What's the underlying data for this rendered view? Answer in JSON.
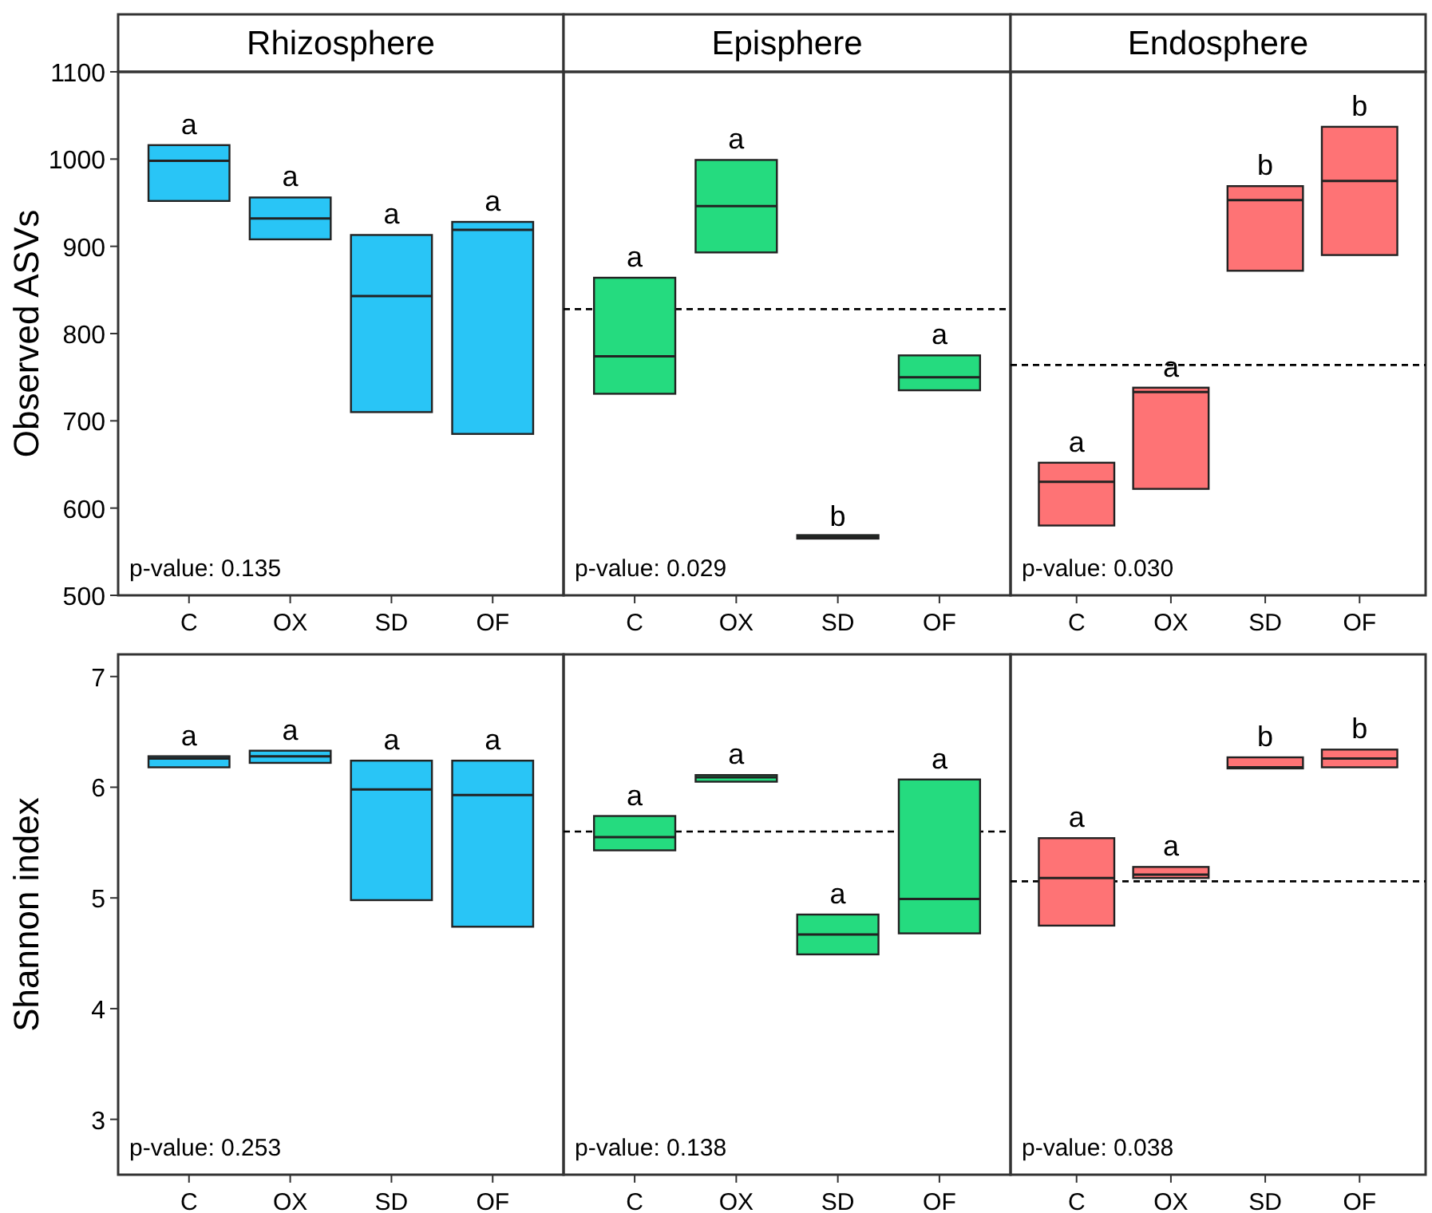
{
  "chart_data": [
    {
      "type": "box",
      "title": "Rhizosphere",
      "ylabel": "Observed ASVs",
      "categories": [
        "C",
        "OX",
        "SD",
        "OF"
      ],
      "color": "#29c5f6",
      "ylim": [
        500,
        1100
      ],
      "yticks": [
        500,
        600,
        700,
        800,
        900,
        1000,
        1100
      ],
      "boxes": [
        {
          "low": 952,
          "q1": 952,
          "median": 998,
          "q3": 1016,
          "high": 1016
        },
        {
          "low": 908,
          "q1": 908,
          "median": 932,
          "q3": 956,
          "high": 956
        },
        {
          "low": 710,
          "q1": 710,
          "median": 843,
          "q3": 913,
          "high": 913
        },
        {
          "low": 685,
          "q1": 685,
          "median": 919,
          "q3": 928,
          "high": 928
        }
      ],
      "annotations": [
        {
          "text": "a",
          "x": "C",
          "y": 1016
        },
        {
          "text": "a",
          "x": "OX",
          "y": 956
        },
        {
          "text": "a",
          "x": "SD",
          "y": 913
        },
        {
          "text": "a",
          "x": "OF",
          "y": 928
        },
        "p-value: 0.135"
      ]
    },
    {
      "type": "box",
      "title": "Episphere",
      "categories": [
        "C",
        "OX",
        "SD",
        "OF"
      ],
      "color": "#25db7f",
      "ylim": [
        500,
        1100
      ],
      "tick_labels": "x",
      "boxes": [
        {
          "low": 731,
          "q1": 731,
          "median": 774,
          "q3": 864,
          "high": 864
        },
        {
          "low": 893,
          "q1": 893,
          "median": 946,
          "q3": 999,
          "high": 999
        },
        {
          "low": 565,
          "q1": 565,
          "median": 567,
          "q3": 569,
          "high": 569
        },
        {
          "low": 735,
          "q1": 735,
          "median": 750,
          "q3": 775,
          "high": 775
        }
      ],
      "ref_lines": [
        {
          "axis": "y",
          "value": 828,
          "line_style": "dashed"
        }
      ],
      "annotations": [
        {
          "text": "a",
          "x": "C",
          "y": 864
        },
        {
          "text": "a",
          "x": "OX",
          "y": 999
        },
        {
          "text": "b",
          "x": "SD",
          "y": 567
        },
        {
          "text": "a",
          "x": "OF",
          "y": 775
        },
        "p-value: 0.029"
      ]
    },
    {
      "type": "box",
      "title": "Endosphere",
      "categories": [
        "C",
        "OX",
        "SD",
        "OF"
      ],
      "color": "#fe7375",
      "ylim": [
        500,
        1100
      ],
      "tick_labels": "x",
      "boxes": [
        {
          "low": 580,
          "q1": 580,
          "median": 630,
          "q3": 652,
          "high": 652
        },
        {
          "low": 622,
          "q1": 622,
          "median": 733,
          "q3": 738,
          "high": 738
        },
        {
          "low": 872,
          "q1": 872,
          "median": 953,
          "q3": 969,
          "high": 969
        },
        {
          "low": 890,
          "q1": 890,
          "median": 975,
          "q3": 1037,
          "high": 1037
        }
      ],
      "ref_lines": [
        {
          "axis": "y",
          "value": 764,
          "line_style": "dashed"
        }
      ],
      "annotations": [
        {
          "text": "a",
          "x": "C",
          "y": 652
        },
        {
          "text": "a",
          "x": "OX",
          "y": 738
        },
        {
          "text": "b",
          "x": "SD",
          "y": 969
        },
        {
          "text": "b",
          "x": "OF",
          "y": 1037
        },
        "p-value: 0.030"
      ]
    },
    {
      "type": "box",
      "ylabel": "Shannon index",
      "categories": [
        "C",
        "OX",
        "SD",
        "OF"
      ],
      "color": "#29c5f6",
      "ylim": [
        2.5,
        7.2
      ],
      "yticks": [
        3,
        4,
        5,
        6,
        7
      ],
      "boxes": [
        {
          "low": 6.18,
          "q1": 6.18,
          "median": 6.26,
          "q3": 6.28,
          "high": 6.28
        },
        {
          "low": 6.22,
          "q1": 6.22,
          "median": 6.28,
          "q3": 6.33,
          "high": 6.33
        },
        {
          "low": 4.98,
          "q1": 4.98,
          "median": 5.98,
          "q3": 6.24,
          "high": 6.24
        },
        {
          "low": 4.74,
          "q1": 4.74,
          "median": 5.93,
          "q3": 6.24,
          "high": 6.24
        }
      ],
      "annotations": [
        {
          "text": "a",
          "x": "C",
          "y": 6.28
        },
        {
          "text": "a",
          "x": "OX",
          "y": 6.33
        },
        {
          "text": "a",
          "x": "SD",
          "y": 6.24
        },
        {
          "text": "a",
          "x": "OF",
          "y": 6.24
        },
        "p-value: 0.253"
      ]
    },
    {
      "type": "box",
      "categories": [
        "C",
        "OX",
        "SD",
        "OF"
      ],
      "color": "#25db7f",
      "ylim": [
        2.5,
        7.2
      ],
      "tick_labels": "x",
      "boxes": [
        {
          "low": 5.43,
          "q1": 5.43,
          "median": 5.55,
          "q3": 5.74,
          "high": 5.74
        },
        {
          "low": 6.05,
          "q1": 6.05,
          "median": 6.09,
          "q3": 6.11,
          "high": 6.11
        },
        {
          "low": 4.49,
          "q1": 4.49,
          "median": 4.67,
          "q3": 4.85,
          "high": 4.85
        },
        {
          "low": 4.68,
          "q1": 4.68,
          "median": 4.99,
          "q3": 6.07,
          "high": 6.07
        }
      ],
      "ref_lines": [
        {
          "axis": "y",
          "value": 5.6,
          "line_style": "dashed"
        }
      ],
      "annotations": [
        {
          "text": "a",
          "x": "C",
          "y": 5.74
        },
        {
          "text": "a",
          "x": "OX",
          "y": 6.11
        },
        {
          "text": "a",
          "x": "SD",
          "y": 4.85
        },
        {
          "text": "a",
          "x": "OF",
          "y": 6.07
        },
        "p-value: 0.138"
      ]
    },
    {
      "type": "box",
      "categories": [
        "C",
        "OX",
        "SD",
        "OF"
      ],
      "color": "#fe7375",
      "ylim": [
        2.5,
        7.2
      ],
      "tick_labels": "x",
      "boxes": [
        {
          "low": 4.75,
          "q1": 4.75,
          "median": 5.18,
          "q3": 5.54,
          "high": 5.54
        },
        {
          "low": 5.18,
          "q1": 5.18,
          "median": 5.21,
          "q3": 5.28,
          "high": 5.28
        },
        {
          "low": 6.17,
          "q1": 6.17,
          "median": 6.18,
          "q3": 6.27,
          "high": 6.27
        },
        {
          "low": 6.18,
          "q1": 6.18,
          "median": 6.26,
          "q3": 6.34,
          "high": 6.34
        }
      ],
      "ref_lines": [
        {
          "axis": "y",
          "value": 5.15,
          "line_style": "dashed"
        }
      ],
      "annotations": [
        {
          "text": "a",
          "x": "C",
          "y": 5.54
        },
        {
          "text": "a",
          "x": "OX",
          "y": 5.28
        },
        {
          "text": "b",
          "x": "SD",
          "y": 6.27
        },
        {
          "text": "b",
          "x": "OF",
          "y": 6.34
        },
        "p-value: 0.038"
      ]
    }
  ]
}
